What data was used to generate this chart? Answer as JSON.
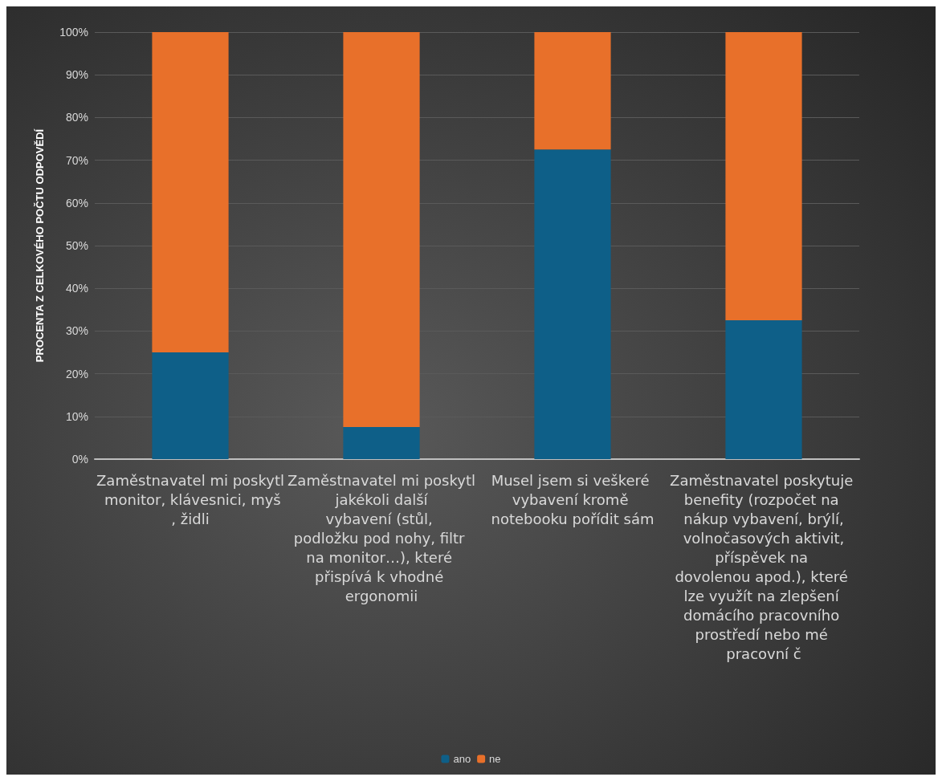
{
  "chart_data": {
    "type": "bar",
    "stacked": true,
    "ylabel": "PROCENTA Z CELKOVÉHO POČTU ODPOVĚDÍ",
    "categories": [
      "Zaměstnavatel mi poskytl monitor, klávesnici, myš, židli",
      "Zaměstnavatel mi poskytl jakékoli další vybavení (stůl, podložku pod nohy, filtr na monitor…), které přispívá k vhodné ergonomii",
      "Musel jsem si veškeré vybavení kromě notebooku pořídit sám",
      "Zaměstnavatel poskytuje benefity (rozpočet na nákup vybavení, brýlí, volnočasových aktivit, příspěvek na dovolenou apod.), které lze využít na zlepšení domácího pracovního prostředí nebo mé pracovní č"
    ],
    "series": [
      {
        "name": "ano",
        "color": "#0e5f88",
        "values": [
          25,
          7.5,
          72.5,
          32.5
        ]
      },
      {
        "name": "ne",
        "color": "#e8702a",
        "values": [
          75,
          92.5,
          27.5,
          67.5
        ]
      }
    ],
    "ylim": [
      0,
      100
    ],
    "yticks": [
      {
        "value": 0,
        "label": "0%"
      },
      {
        "value": 10,
        "label": "10%"
      },
      {
        "value": 20,
        "label": "20%"
      },
      {
        "value": 30,
        "label": "30%"
      },
      {
        "value": 40,
        "label": "40%"
      },
      {
        "value": 50,
        "label": "50%"
      },
      {
        "value": 60,
        "label": "60%"
      },
      {
        "value": 70,
        "label": "70%"
      },
      {
        "value": 80,
        "label": "80%"
      },
      {
        "value": 90,
        "label": "90%"
      },
      {
        "value": 100,
        "label": "100%"
      }
    ],
    "grid": "y",
    "legend": "bottom"
  }
}
